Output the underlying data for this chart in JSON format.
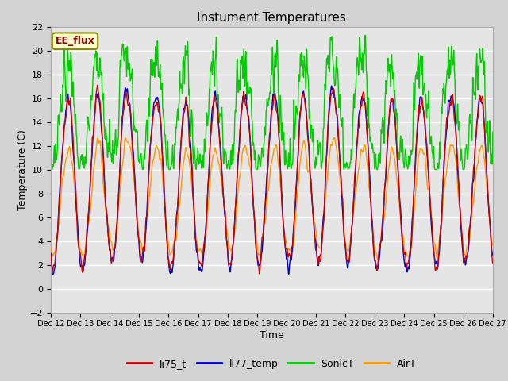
{
  "title": "Instument Temperatures",
  "xlabel": "Time",
  "ylabel": "Temperature (C)",
  "ylim": [
    -2,
    22
  ],
  "xlim": [
    12,
    27
  ],
  "annotation": "EE_flux",
  "plot_bg_color": "#e5e5e5",
  "fig_bg_color": "#d3d3d3",
  "grid_color": "white",
  "line_colors": {
    "li75_t": "#cc0000",
    "li77_temp": "#0000cc",
    "SonicT": "#00cc00",
    "AirT": "#ff9900"
  },
  "legend_labels": [
    "li75_t",
    "li77_temp",
    "SonicT",
    "AirT"
  ],
  "x_tick_labels": [
    "Dec 12",
    "Dec 13",
    "Dec 14",
    "Dec 15",
    "Dec 16",
    "Dec 17",
    "Dec 18",
    "Dec 19",
    "Dec 20",
    "Dec 21",
    "Dec 22",
    "Dec 23",
    "Dec 24",
    "Dec 25",
    "Dec 26",
    "Dec 27"
  ],
  "x_tick_positions": [
    12,
    13,
    14,
    15,
    16,
    17,
    18,
    19,
    20,
    21,
    22,
    23,
    24,
    25,
    26,
    27
  ],
  "y_tick_positions": [
    -2,
    0,
    2,
    4,
    6,
    8,
    10,
    12,
    14,
    16,
    18,
    20,
    22
  ]
}
